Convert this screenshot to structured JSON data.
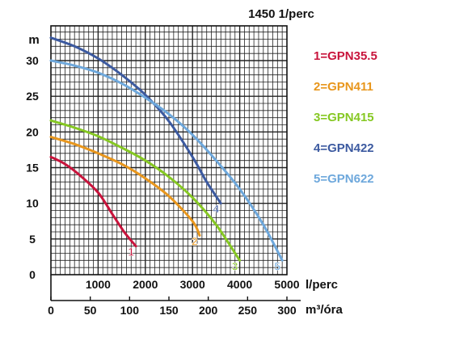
{
  "chart_data": {
    "type": "line",
    "title": "1450 1/perc",
    "ylabel": "m",
    "xlabel": "l/perc",
    "x2label": "m³/óra",
    "xlim": [
      0,
      5000
    ],
    "ylim": [
      0,
      34
    ],
    "x_ticks": [
      "1000",
      "2000",
      "3000",
      "4000",
      "5000"
    ],
    "x2_ticks": [
      "0",
      "50",
      "100",
      "150",
      "200",
      "250",
      "300"
    ],
    "y_ticks": [
      "0",
      "5",
      "10",
      "15",
      "20",
      "25",
      "30"
    ],
    "grid": true,
    "legend_position": "right",
    "series": [
      {
        "name": "1=GPN35.5",
        "end_label": "1",
        "color": "#c8143c",
        "x": [
          0,
          300,
          600,
          1000,
          1300,
          1550,
          1800
        ],
        "y": [
          16.5,
          15.5,
          14,
          11.5,
          8.5,
          6,
          4
        ]
      },
      {
        "name": "2=GPN411",
        "end_label": "2",
        "color": "#e8961c",
        "x": [
          0,
          500,
          1000,
          1500,
          2000,
          2500,
          3000,
          3150
        ],
        "y": [
          19.3,
          18.3,
          17,
          15.5,
          13.5,
          11,
          7.5,
          5.5
        ]
      },
      {
        "name": "3=GPN415",
        "end_label": "3",
        "color": "#86c823",
        "x": [
          0,
          500,
          1000,
          1500,
          2000,
          2500,
          3000,
          3500,
          4000
        ],
        "y": [
          21.6,
          20.6,
          19.4,
          17.8,
          16,
          13.7,
          10.8,
          7,
          2
        ]
      },
      {
        "name": "4=GPN422",
        "end_label": "4",
        "color": "#3c5aa0",
        "x": [
          0,
          500,
          1000,
          1500,
          2000,
          2500,
          3000,
          3300,
          3600
        ],
        "y": [
          33.2,
          32,
          30.3,
          28,
          25.2,
          21.5,
          16.5,
          13,
          10
        ]
      },
      {
        "name": "5=GPN622",
        "end_label": "5",
        "color": "#6ea8dc",
        "x": [
          0,
          500,
          1000,
          1500,
          2000,
          2500,
          3000,
          3500,
          4000,
          4500,
          4900
        ],
        "y": [
          30,
          29.3,
          28.3,
          26.8,
          24.8,
          22.5,
          19.6,
          16,
          12,
          7,
          2
        ]
      }
    ]
  }
}
